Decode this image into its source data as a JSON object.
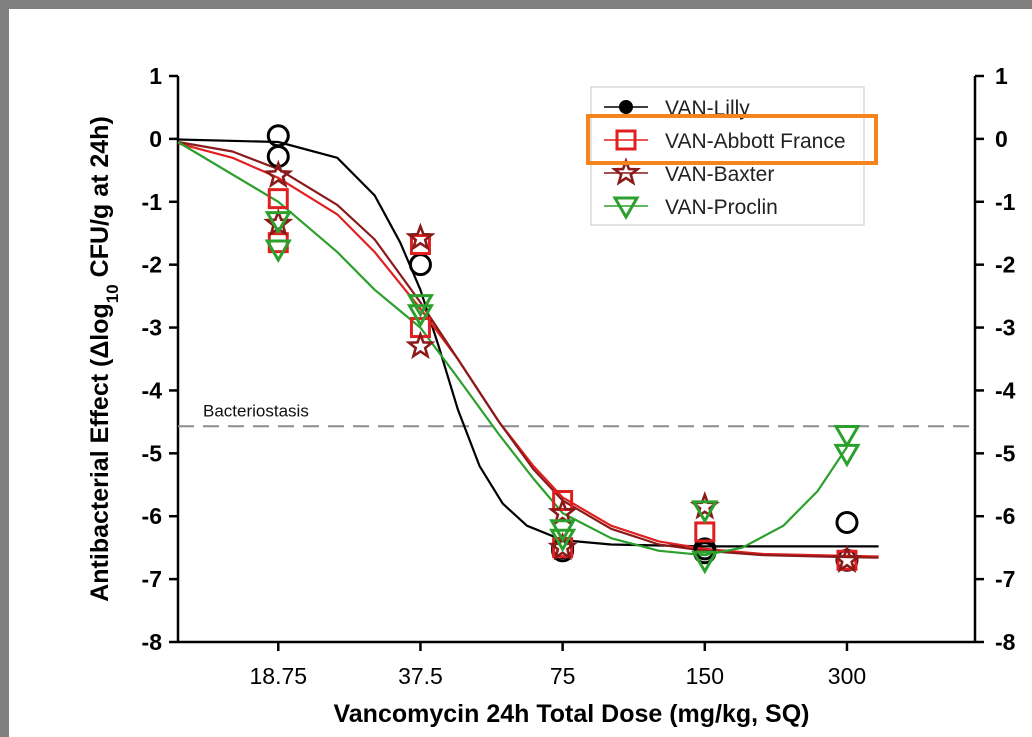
{
  "chart_data": {
    "type": "scatter",
    "xlabel": "Vancomycin 24h Total Dose (mg/kg, SQ)",
    "ylabel_parts": [
      "Antibacterial Effect (Δlog",
      "10",
      " CFU/g at 24h)"
    ],
    "x_scale": "log2",
    "x_ticks": [
      18.75,
      37.5,
      75,
      150,
      300
    ],
    "x_tick_labels": [
      "18.75",
      "37.5",
      "75",
      "150",
      "300"
    ],
    "xlim": [
      11.5,
      560
    ],
    "ylim": [
      -8,
      1
    ],
    "y_ticks": [
      1,
      0,
      -1,
      -2,
      -3,
      -4,
      -5,
      -6,
      -7,
      -8
    ],
    "y_tick_labels": [
      "1",
      "0",
      "-1",
      "-2",
      "-3",
      "-4",
      "-5",
      "-6",
      "-7",
      "-8"
    ],
    "right_axis": true,
    "grid": false,
    "legend_position": "top-right",
    "reference_line": {
      "label": "Bacteriostasis",
      "y": -4.57,
      "style": "dashed",
      "color": "#8c8c8c"
    },
    "series": [
      {
        "name": "VAN-Lilly",
        "marker": "circle",
        "color": "#000000",
        "points": [
          [
            18.75,
            0.05
          ],
          [
            18.75,
            -0.28
          ],
          [
            37.5,
            -2.0
          ],
          [
            75,
            -6.5
          ],
          [
            75,
            -6.55
          ],
          [
            150,
            -6.52
          ],
          [
            150,
            -6.58
          ],
          [
            300,
            -6.1
          ],
          [
            300,
            -6.7
          ]
        ],
        "curve": [
          [
            11.5,
            -0.01
          ],
          [
            18.75,
            -0.05
          ],
          [
            25,
            -0.3
          ],
          [
            30,
            -0.9
          ],
          [
            34,
            -1.65
          ],
          [
            37.5,
            -2.4
          ],
          [
            41,
            -3.3
          ],
          [
            45,
            -4.3
          ],
          [
            50,
            -5.2
          ],
          [
            56,
            -5.8
          ],
          [
            63,
            -6.15
          ],
          [
            75,
            -6.38
          ],
          [
            95,
            -6.45
          ],
          [
            150,
            -6.48
          ],
          [
            300,
            -6.48
          ],
          [
            350,
            -6.48
          ]
        ]
      },
      {
        "name": "VAN-Abbott France",
        "marker": "square",
        "color": "#e02020",
        "points": [
          [
            18.75,
            -0.95
          ],
          [
            18.75,
            -1.65
          ],
          [
            37.5,
            -1.68
          ],
          [
            37.5,
            -3.0
          ],
          [
            75,
            -5.75
          ],
          [
            75,
            -6.5
          ],
          [
            150,
            -6.25
          ],
          [
            300,
            -6.7
          ]
        ],
        "curve": [
          [
            11.5,
            -0.07
          ],
          [
            15,
            -0.3
          ],
          [
            18.75,
            -0.62
          ],
          [
            25,
            -1.2
          ],
          [
            30,
            -1.8
          ],
          [
            37.5,
            -2.7
          ],
          [
            45,
            -3.5
          ],
          [
            55,
            -4.5
          ],
          [
            65,
            -5.2
          ],
          [
            75,
            -5.7
          ],
          [
            95,
            -6.15
          ],
          [
            120,
            -6.4
          ],
          [
            150,
            -6.52
          ],
          [
            200,
            -6.6
          ],
          [
            300,
            -6.63
          ],
          [
            350,
            -6.64
          ]
        ]
      },
      {
        "name": "VAN-Baxter",
        "marker": "star",
        "color": "#8b1a1a",
        "points": [
          [
            18.75,
            -0.58
          ],
          [
            18.75,
            -1.35
          ],
          [
            37.5,
            -1.58
          ],
          [
            37.5,
            -3.3
          ],
          [
            75,
            -5.95
          ],
          [
            75,
            -6.5
          ],
          [
            150,
            -5.85
          ],
          [
            300,
            -6.7
          ]
        ],
        "curve": [
          [
            11.5,
            -0.05
          ],
          [
            15,
            -0.2
          ],
          [
            18.75,
            -0.48
          ],
          [
            25,
            -1.05
          ],
          [
            30,
            -1.6
          ],
          [
            37.5,
            -2.6
          ],
          [
            45,
            -3.5
          ],
          [
            55,
            -4.5
          ],
          [
            65,
            -5.25
          ],
          [
            75,
            -5.75
          ],
          [
            95,
            -6.2
          ],
          [
            120,
            -6.45
          ],
          [
            150,
            -6.55
          ],
          [
            200,
            -6.62
          ],
          [
            300,
            -6.65
          ],
          [
            350,
            -6.66
          ]
        ]
      },
      {
        "name": "VAN-Proclin",
        "marker": "triangle-down",
        "color": "#2ca02c",
        "points": [
          [
            18.75,
            -1.3
          ],
          [
            18.75,
            -1.75
          ],
          [
            37.5,
            -2.62
          ],
          [
            37.5,
            -2.78
          ],
          [
            75,
            -6.2
          ],
          [
            75,
            -6.35
          ],
          [
            150,
            -5.9
          ],
          [
            150,
            -6.7
          ],
          [
            300,
            -4.7
          ],
          [
            300,
            -5.0
          ]
        ],
        "curve": [
          [
            11.5,
            -0.05
          ],
          [
            18.75,
            -1.0
          ],
          [
            25,
            -1.8
          ],
          [
            30,
            -2.4
          ],
          [
            37.5,
            -3.0
          ],
          [
            45,
            -3.8
          ],
          [
            55,
            -4.7
          ],
          [
            65,
            -5.4
          ],
          [
            75,
            -5.95
          ],
          [
            95,
            -6.35
          ],
          [
            120,
            -6.55
          ],
          [
            150,
            -6.62
          ],
          [
            180,
            -6.5
          ],
          [
            220,
            -6.15
          ],
          [
            260,
            -5.6
          ],
          [
            300,
            -4.9
          ]
        ]
      }
    ]
  },
  "legend": {
    "highlight_color": "#f5841f",
    "highlighted_entry": "VAN-Abbott France"
  }
}
